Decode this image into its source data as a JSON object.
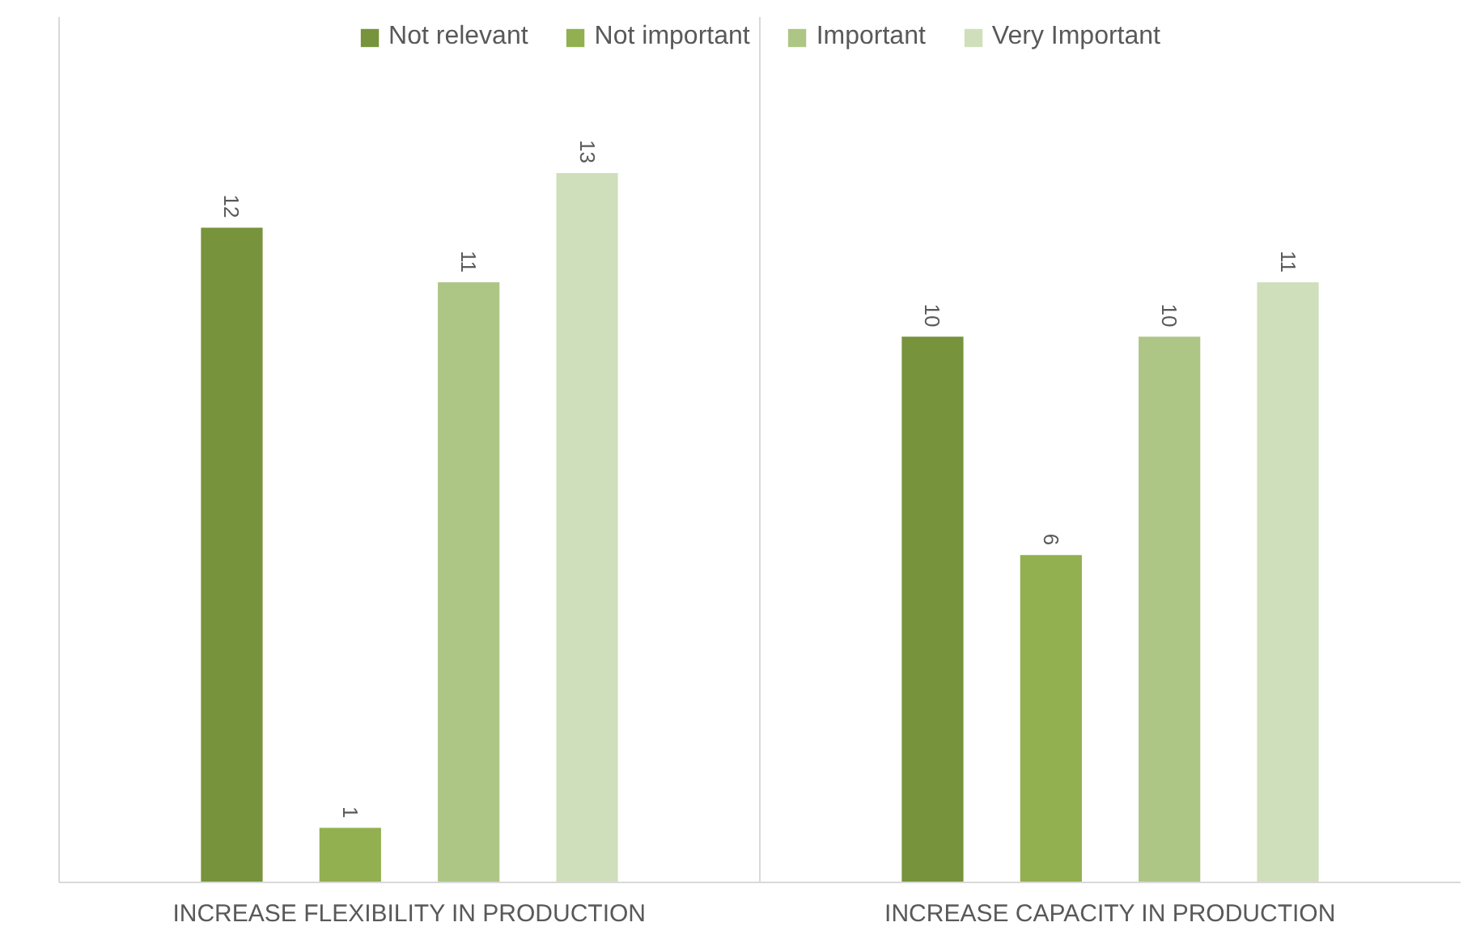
{
  "chart_data": {
    "type": "bar",
    "categories": [
      "INCREASE FLEXIBILITY IN PRODUCTION",
      "INCREASE CAPACITY IN PRODUCTION"
    ],
    "series": [
      {
        "name": "Not relevant",
        "color": "#77933c",
        "values": [
          12,
          10
        ]
      },
      {
        "name": "Not important",
        "color": "#92b050",
        "values": [
          1,
          6
        ]
      },
      {
        "name": "Important",
        "color": "#adc686",
        "values": [
          11,
          10
        ]
      },
      {
        "name": "Very Important",
        "color": "#d0dfbb",
        "values": [
          13,
          11
        ]
      }
    ],
    "data_labels": true,
    "legend": "top"
  }
}
